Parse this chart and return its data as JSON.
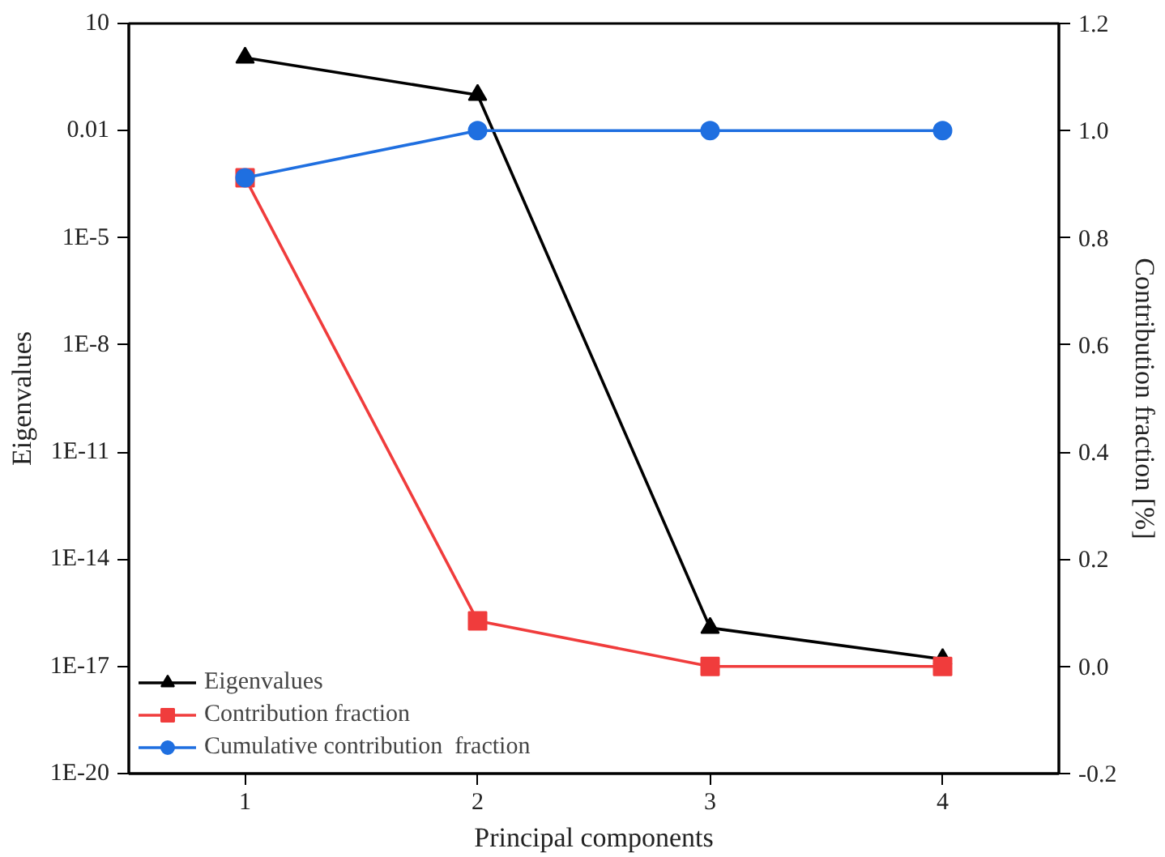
{
  "chart_data": {
    "type": "line",
    "xlabel": "Principal components",
    "ylabel": "Eigenvalues",
    "y2label": "Contribution fraction [%]",
    "x": [
      1,
      2,
      3,
      4
    ],
    "xlim": [
      0.5,
      4.5
    ],
    "xticks": [
      1,
      2,
      3,
      4
    ],
    "log": "y",
    "ylim": [
      1e-20,
      10
    ],
    "yticks": [
      10,
      0.01,
      {
        "value": 1e-05,
        "label": "1E-5"
      },
      {
        "value": 1e-08,
        "label": "1E-8"
      },
      {
        "value": 1e-11,
        "label": "1E-11"
      },
      {
        "value": 1e-14,
        "label": "1E-14"
      },
      {
        "value": 1e-17,
        "label": "1E-17"
      },
      {
        "value": 1e-20,
        "label": "1E-20"
      }
    ],
    "y2lim": [
      -0.2,
      1.2
    ],
    "y2ticks": [
      -0.2,
      {
        "value": 0,
        "label": "0.0"
      },
      0.2,
      0.4,
      0.6,
      0.8,
      {
        "value": 1,
        "label": "1.0"
      },
      1.2
    ],
    "grid": false,
    "legend": "bottom left",
    "series": [
      {
        "name": "Eigenvalues",
        "color": "#000000",
        "marker": "triangle",
        "values": [
          1.1,
          0.1,
          1.2e-16,
          1.6e-17
        ]
      },
      {
        "name": "Contribution fraction",
        "color": "#f03c3c",
        "marker": "square",
        "axis": "y2",
        "values": [
          0.912,
          0.085,
          0,
          0
        ]
      },
      {
        "name": "Cumulative contribution  fraction",
        "color": "#1f6fe0",
        "marker": "circle",
        "axis": "y2",
        "values": [
          0.912,
          1,
          1,
          1
        ]
      }
    ]
  }
}
